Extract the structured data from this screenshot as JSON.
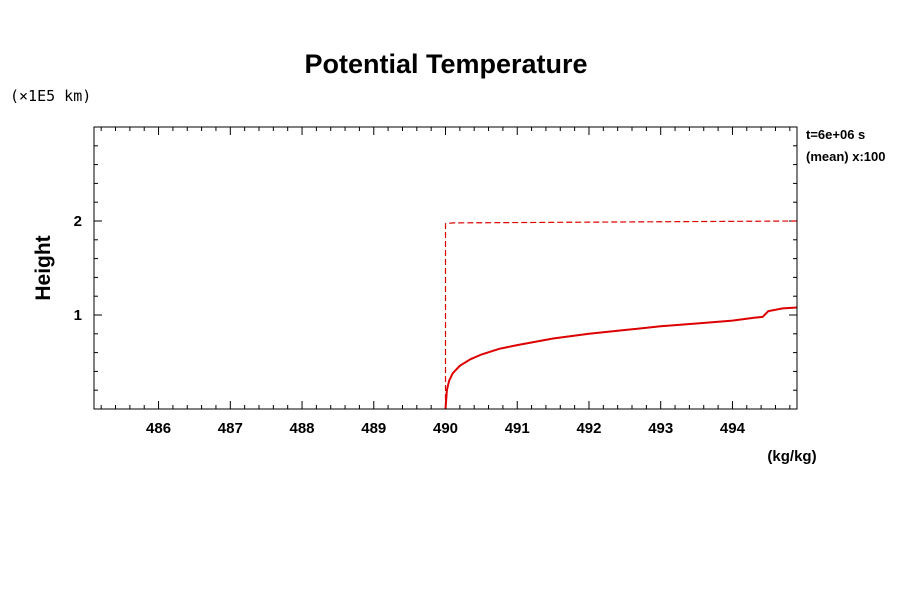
{
  "chart_data": {
    "type": "line",
    "title": "Potential Temperature",
    "y_units": "(×1E5 km)",
    "ylabel": "Height",
    "xlabel": "(kg/kg)",
    "annotations": [
      "t=6e+06 s",
      "(mean) x:100"
    ],
    "xlim": [
      485.1,
      494.9
    ],
    "ylim": [
      0,
      3
    ],
    "x_ticks": [
      486,
      487,
      488,
      489,
      490,
      491,
      492,
      493,
      494
    ],
    "y_ticks": [
      1,
      2
    ],
    "grid": false,
    "legend": "none",
    "series": [
      {
        "style": "solid",
        "color": "#dd0000",
        "x": [
          490.0,
          490.02,
          490.05,
          490.1,
          490.2,
          490.35,
          490.5,
          490.75,
          491.0,
          491.5,
          492.0,
          492.5,
          493.0,
          493.5,
          494.0,
          494.3,
          494.42,
          494.5,
          494.7,
          494.9
        ],
        "y": [
          0.0,
          0.2,
          0.3,
          0.38,
          0.46,
          0.53,
          0.58,
          0.64,
          0.68,
          0.75,
          0.8,
          0.84,
          0.88,
          0.91,
          0.94,
          0.97,
          0.98,
          1.04,
          1.07,
          1.08
        ]
      },
      {
        "style": "dashed",
        "color": "#dd0000",
        "x": [
          490.0,
          490.0,
          490.1,
          494.9
        ],
        "y": [
          0.0,
          1.97,
          1.98,
          2.0
        ]
      }
    ]
  }
}
